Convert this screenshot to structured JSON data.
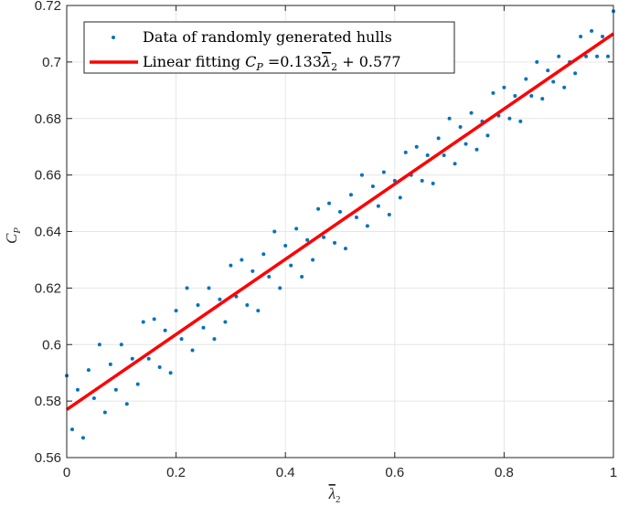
{
  "chart_data": {
    "type": "scatter",
    "xlabel": "λ̄₂",
    "ylabel": "C_P",
    "xlim": [
      0,
      1
    ],
    "ylim": [
      0.56,
      0.72
    ],
    "xticks": [
      "0",
      "0.2",
      "0.4",
      "0.6",
      "0.8",
      "1"
    ],
    "yticks": [
      "0.56",
      "0.58",
      "0.6",
      "0.62",
      "0.64",
      "0.66",
      "0.68",
      "0.7",
      "0.72"
    ],
    "grid": true,
    "legend_position": "top-left",
    "series": [
      {
        "name": "Data of randomly generated hulls",
        "kind": "scatter",
        "color": "#0072BD",
        "x": [
          0,
          0.01,
          0.02,
          0.03,
          0.04,
          0.05,
          0.06,
          0.07,
          0.08,
          0.09,
          0.1,
          0.11,
          0.12,
          0.13,
          0.14,
          0.15,
          0.16,
          0.17,
          0.18,
          0.19,
          0.2,
          0.21,
          0.22,
          0.23,
          0.24,
          0.25,
          0.26,
          0.27,
          0.28,
          0.29,
          0.3,
          0.31,
          0.32,
          0.33,
          0.34,
          0.35,
          0.36,
          0.37,
          0.38,
          0.39,
          0.4,
          0.41,
          0.42,
          0.43,
          0.44,
          0.45,
          0.46,
          0.47,
          0.48,
          0.49,
          0.5,
          0.51,
          0.52,
          0.53,
          0.54,
          0.55,
          0.56,
          0.57,
          0.58,
          0.59,
          0.6,
          0.61,
          0.62,
          0.63,
          0.64,
          0.65,
          0.66,
          0.67,
          0.68,
          0.69,
          0.7,
          0.71,
          0.72,
          0.73,
          0.74,
          0.75,
          0.76,
          0.77,
          0.78,
          0.79,
          0.8,
          0.81,
          0.82,
          0.83,
          0.84,
          0.85,
          0.86,
          0.87,
          0.88,
          0.89,
          0.9,
          0.91,
          0.92,
          0.93,
          0.94,
          0.95,
          0.96,
          0.97,
          0.98,
          0.99,
          1.0
        ],
        "y": [
          0.589,
          0.57,
          0.584,
          0.567,
          0.591,
          0.581,
          0.6,
          0.576,
          0.593,
          0.584,
          0.6,
          0.579,
          0.595,
          0.586,
          0.608,
          0.595,
          0.609,
          0.592,
          0.605,
          0.59,
          0.612,
          0.602,
          0.62,
          0.598,
          0.614,
          0.606,
          0.62,
          0.602,
          0.616,
          0.608,
          0.628,
          0.617,
          0.63,
          0.614,
          0.626,
          0.612,
          0.632,
          0.624,
          0.64,
          0.62,
          0.635,
          0.628,
          0.641,
          0.624,
          0.637,
          0.63,
          0.648,
          0.638,
          0.65,
          0.636,
          0.647,
          0.634,
          0.653,
          0.645,
          0.66,
          0.642,
          0.656,
          0.649,
          0.661,
          0.646,
          0.658,
          0.652,
          0.668,
          0.66,
          0.67,
          0.658,
          0.667,
          0.657,
          0.673,
          0.667,
          0.68,
          0.664,
          0.677,
          0.671,
          0.682,
          0.669,
          0.679,
          0.674,
          0.689,
          0.681,
          0.691,
          0.68,
          0.688,
          0.679,
          0.694,
          0.688,
          0.7,
          0.687,
          0.697,
          0.693,
          0.702,
          0.691,
          0.7,
          0.696,
          0.709,
          0.702,
          0.711,
          0.702,
          0.709,
          0.702,
          0.718
        ]
      },
      {
        "name": "Linear fitting C_P = 0.133λ̄₂ + 0.577",
        "kind": "line",
        "color": "#FF0000",
        "slope": 0.133,
        "intercept": 0.577
      }
    ]
  },
  "legend": {
    "scatter_label": "Data of randomly generated hulls",
    "line_label_prefix": "Linear fitting ",
    "line_label_var": "C",
    "line_label_sub": "P",
    "line_label_eq": " =0.133",
    "line_label_lambda": "λ",
    "line_label_lambda_sub": "2",
    "line_label_tail": " + 0.577"
  },
  "axes": {
    "xlabel_main": "λ",
    "xlabel_sub": "2",
    "ylabel_main": "C",
    "ylabel_sub": "P"
  }
}
